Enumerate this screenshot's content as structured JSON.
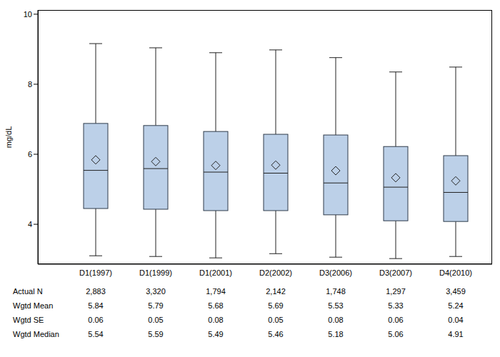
{
  "chart_data": {
    "type": "box",
    "y_label": "mg/dL",
    "categories": [
      "D1(1997)",
      "D1(1999)",
      "D1(2001)",
      "D2(2002)",
      "D3(2006)",
      "D3(2007)",
      "D4(2010)"
    ],
    "ylim": [
      2.86,
      10.12
    ],
    "yticks": [
      4,
      6,
      8,
      10
    ],
    "grid": false,
    "color": "#bcd0e8",
    "whisker_low": [
      3.1,
      3.08,
      3.04,
      3.16,
      3.06,
      3.02,
      3.08
    ],
    "q1": [
      4.45,
      4.43,
      4.39,
      4.39,
      4.27,
      4.1,
      4.08
    ],
    "median": [
      5.54,
      5.59,
      5.49,
      5.46,
      5.18,
      5.06,
      4.91
    ],
    "q3": [
      6.88,
      6.82,
      6.65,
      6.57,
      6.55,
      6.22,
      5.96
    ],
    "whisker_high": [
      9.16,
      9.04,
      8.9,
      8.98,
      8.76,
      8.35,
      8.49
    ],
    "mean": [
      5.84,
      5.79,
      5.68,
      5.69,
      5.53,
      5.33,
      5.24
    ],
    "table": {
      "row_labels": [
        "Actual N",
        "Wgtd Mean",
        "Wgtd SE",
        "Wgtd Median"
      ],
      "actual_n": [
        "2,883",
        "3,320",
        "1,794",
        "2,142",
        "1,748",
        "1,297",
        "3,459"
      ],
      "se": [
        0.06,
        0.05,
        0.08,
        0.05,
        0.08,
        0.06,
        0.04
      ]
    }
  }
}
